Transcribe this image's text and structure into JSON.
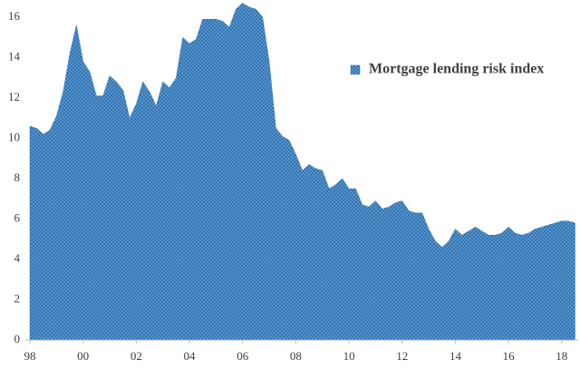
{
  "chart_data": {
    "type": "area",
    "categories": [
      "98",
      null,
      null,
      null,
      null,
      null,
      null,
      null,
      "00",
      null,
      null,
      null,
      null,
      null,
      null,
      null,
      "02",
      null,
      null,
      null,
      null,
      null,
      null,
      null,
      "04",
      null,
      null,
      null,
      null,
      null,
      null,
      null,
      "06",
      null,
      null,
      null,
      null,
      null,
      null,
      null,
      "08",
      null,
      null,
      null,
      null,
      null,
      null,
      null,
      "10",
      null,
      null,
      null,
      null,
      null,
      null,
      null,
      "12",
      null,
      null,
      null,
      null,
      null,
      null,
      null,
      "14",
      null,
      null,
      null,
      null,
      null,
      null,
      null,
      "16",
      null,
      null,
      null,
      null,
      null,
      null,
      null,
      "18",
      null,
      null
    ],
    "series": [
      {
        "name": "Mortgage lending risk index",
        "color": "#2e75b6",
        "values": [
          10.6,
          10.5,
          10.2,
          10.4,
          11.1,
          12.3,
          14.2,
          15.6,
          13.8,
          13.3,
          12.1,
          12.1,
          13.1,
          12.8,
          12.4,
          11.0,
          11.7,
          12.8,
          12.3,
          11.6,
          12.8,
          12.5,
          13.0,
          15.0,
          14.7,
          14.9,
          15.9,
          15.9,
          15.9,
          15.8,
          15.5,
          16.4,
          16.7,
          16.5,
          16.4,
          16.0,
          13.8,
          10.5,
          10.1,
          9.9,
          9.2,
          8.4,
          8.7,
          8.5,
          8.4,
          7.5,
          7.7,
          8.0,
          7.5,
          7.5,
          6.7,
          6.6,
          6.9,
          6.5,
          6.6,
          6.8,
          6.9,
          6.4,
          6.3,
          6.3,
          5.5,
          4.9,
          4.6,
          4.9,
          5.5,
          5.2,
          5.4,
          5.6,
          5.4,
          5.2,
          5.2,
          5.3,
          5.6,
          5.3,
          5.2,
          5.3,
          5.5,
          5.6,
          5.7,
          5.8,
          5.9,
          5.9,
          5.8
        ]
      }
    ],
    "ylim": [
      0,
      17
    ],
    "yticks": [
      0,
      2,
      4,
      6,
      8,
      10,
      12,
      14,
      16
    ],
    "grid": false,
    "legend": "top-right"
  }
}
